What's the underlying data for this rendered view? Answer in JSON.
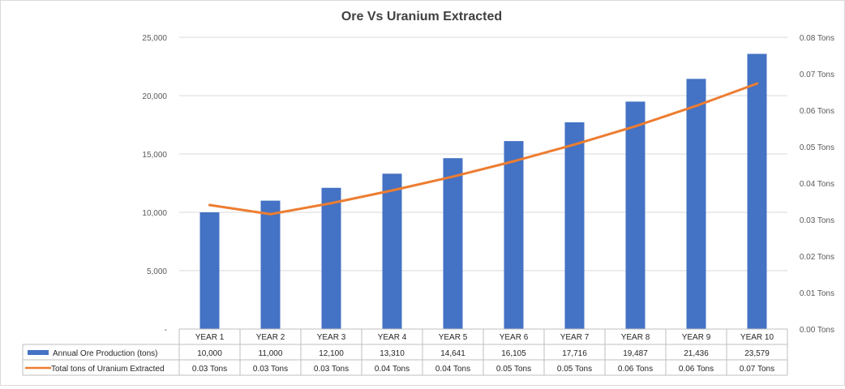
{
  "chart_data": {
    "type": "bar",
    "title": "Ore Vs  Uranium Extracted",
    "categories": [
      "YEAR 1",
      "YEAR 2",
      "YEAR 3",
      "YEAR 4",
      "YEAR 5",
      "YEAR 6",
      "YEAR 7",
      "YEAR 8",
      "YEAR 9",
      "YEAR 10"
    ],
    "series": [
      {
        "name": "Annual Ore Production (tons)",
        "type": "bar",
        "axis": "left",
        "color": "#4472C4",
        "values": [
          10000,
          11000,
          12100,
          13310,
          14641,
          16105,
          17716,
          19487,
          21436,
          23579
        ],
        "labels": [
          "10,000",
          "11,000",
          "12,100",
          "13,310",
          "14,641",
          "16,105",
          "17,716",
          "19,487",
          "21,436",
          "23,579"
        ]
      },
      {
        "name": "Total tons of Uranium Extracted",
        "type": "line",
        "axis": "right",
        "color": "#ED7D31",
        "values": [
          0.034,
          0.0315,
          0.0345,
          0.038,
          0.0418,
          0.046,
          0.0506,
          0.0556,
          0.0612,
          0.0673
        ],
        "labels": [
          "0.03 Tons",
          "0.03 Tons",
          "0.03 Tons",
          "0.04 Tons",
          "0.04 Tons",
          "0.05 Tons",
          "0.05 Tons",
          "0.06 Tons",
          "0.06 Tons",
          "0.07 Tons"
        ]
      }
    ],
    "y_left": {
      "ylim": [
        0,
        25000
      ],
      "ticks": [
        0,
        5000,
        10000,
        15000,
        20000,
        25000
      ],
      "tick_labels": [
        "-",
        "5,000",
        "10,000",
        "15,000",
        "20,000",
        "25,000"
      ]
    },
    "y_right": {
      "ylim": [
        0,
        0.08
      ],
      "ticks": [
        0,
        0.01,
        0.02,
        0.03,
        0.04,
        0.05,
        0.06,
        0.07,
        0.08
      ],
      "tick_labels": [
        "0.00 Tons",
        "0.01 Tons",
        "0.02 Tons",
        "0.03 Tons",
        "0.04 Tons",
        "0.05 Tons",
        "0.06 Tons",
        "0.07 Tons",
        "0.08 Tons"
      ]
    },
    "grid": true,
    "legend": "data-table"
  }
}
